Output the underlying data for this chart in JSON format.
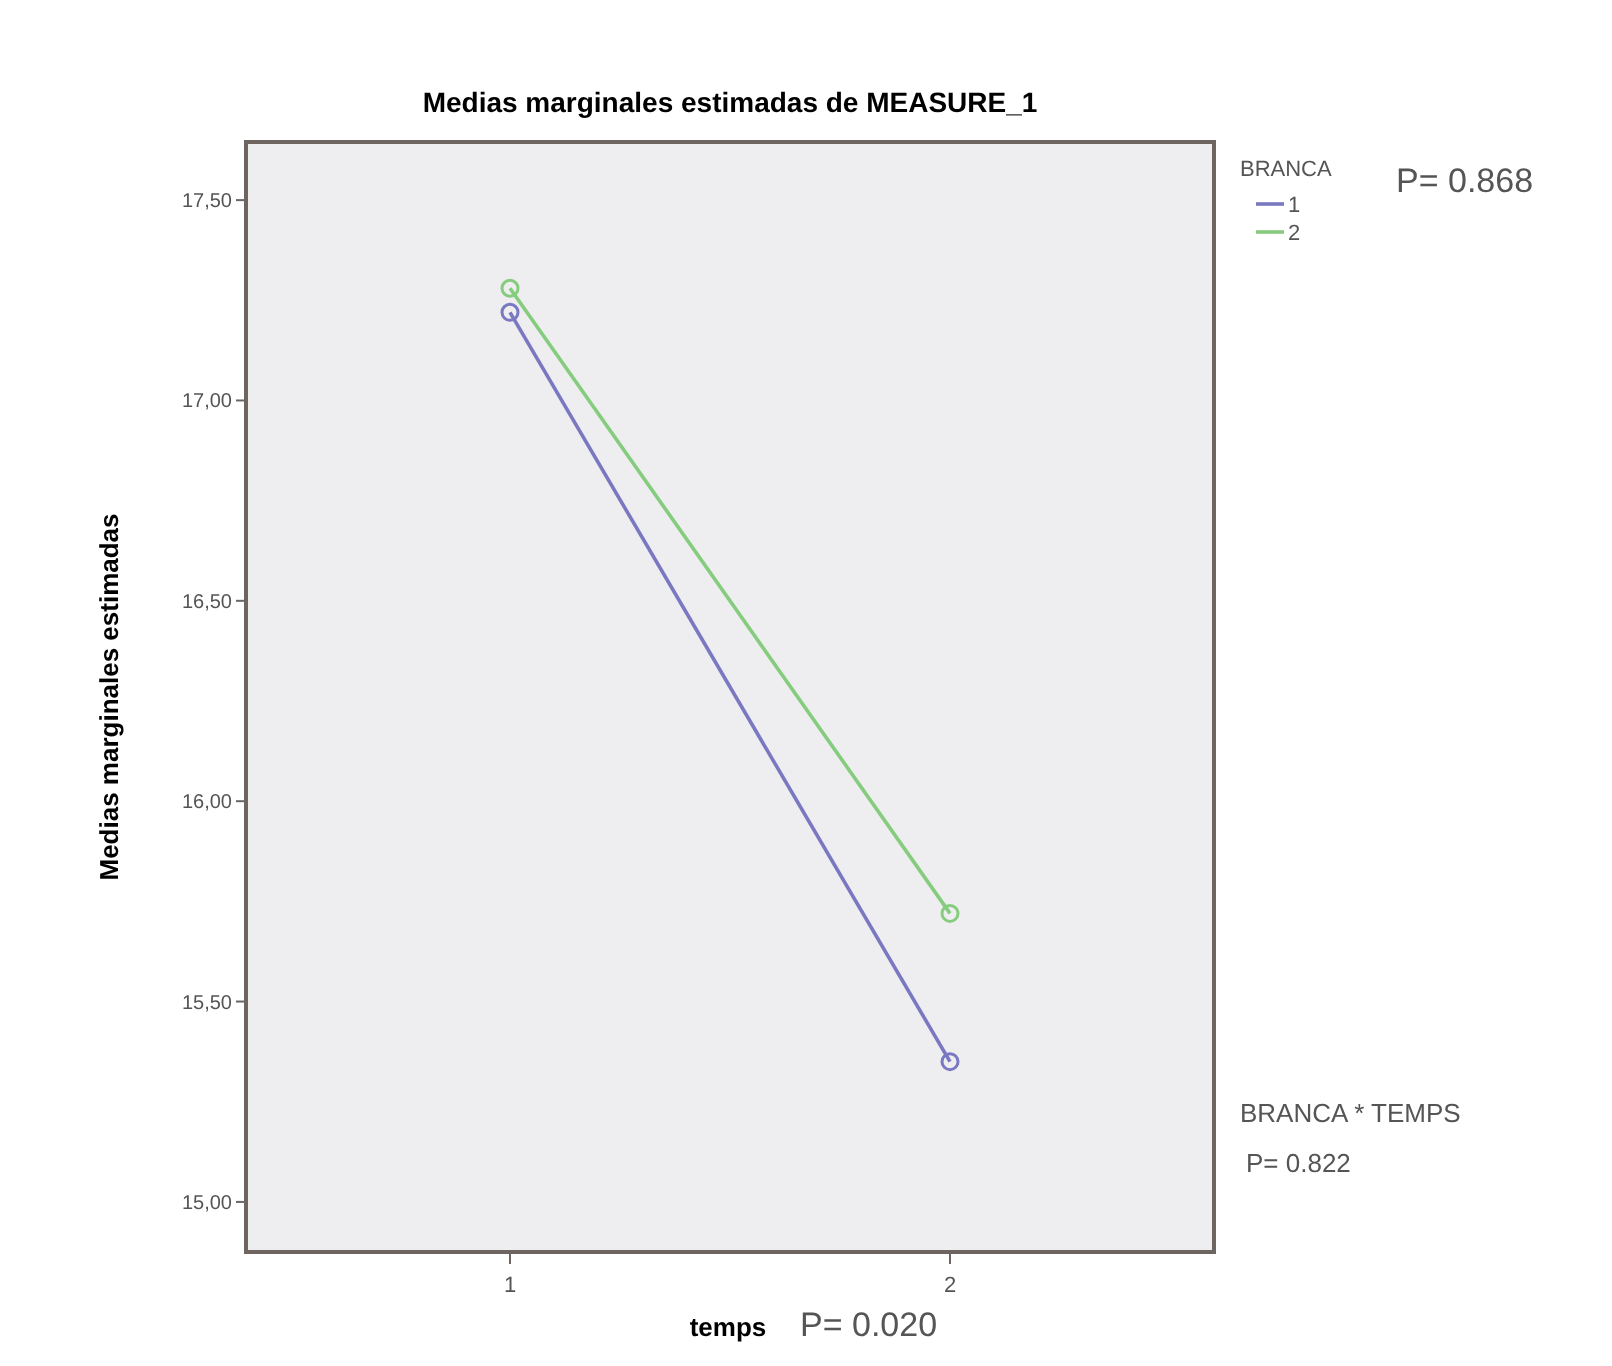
{
  "chart_data": {
    "type": "line",
    "title": "Medias marginales estimadas de MEASURE_1",
    "xlabel": "temps",
    "ylabel": "Medias marginales estimadas",
    "legend_title": "BRANCA",
    "categories": [
      "1",
      "2"
    ],
    "series": [
      {
        "name": "1",
        "color": "#7a78c0",
        "values": [
          17.22,
          15.35
        ]
      },
      {
        "name": "2",
        "color": "#86cc7e",
        "values": [
          17.28,
          15.72
        ]
      }
    ],
    "ylim": [
      14.875,
      17.645
    ],
    "yticks": [
      {
        "value": 15,
        "label": "15,00"
      },
      {
        "value": 15.5,
        "label": "15,50"
      },
      {
        "value": 16,
        "label": "16,00"
      },
      {
        "value": 16.5,
        "label": "16,50"
      },
      {
        "value": 17,
        "label": "17,00"
      },
      {
        "value": 17.5,
        "label": "17,50"
      }
    ],
    "marker": "circle",
    "line_style": "solid",
    "legend": "top right",
    "grid": false,
    "annotations": [
      "P= 0.868",
      "BRANCA * TEMPS",
      "P= 0.822",
      "P= 0.020"
    ]
  }
}
